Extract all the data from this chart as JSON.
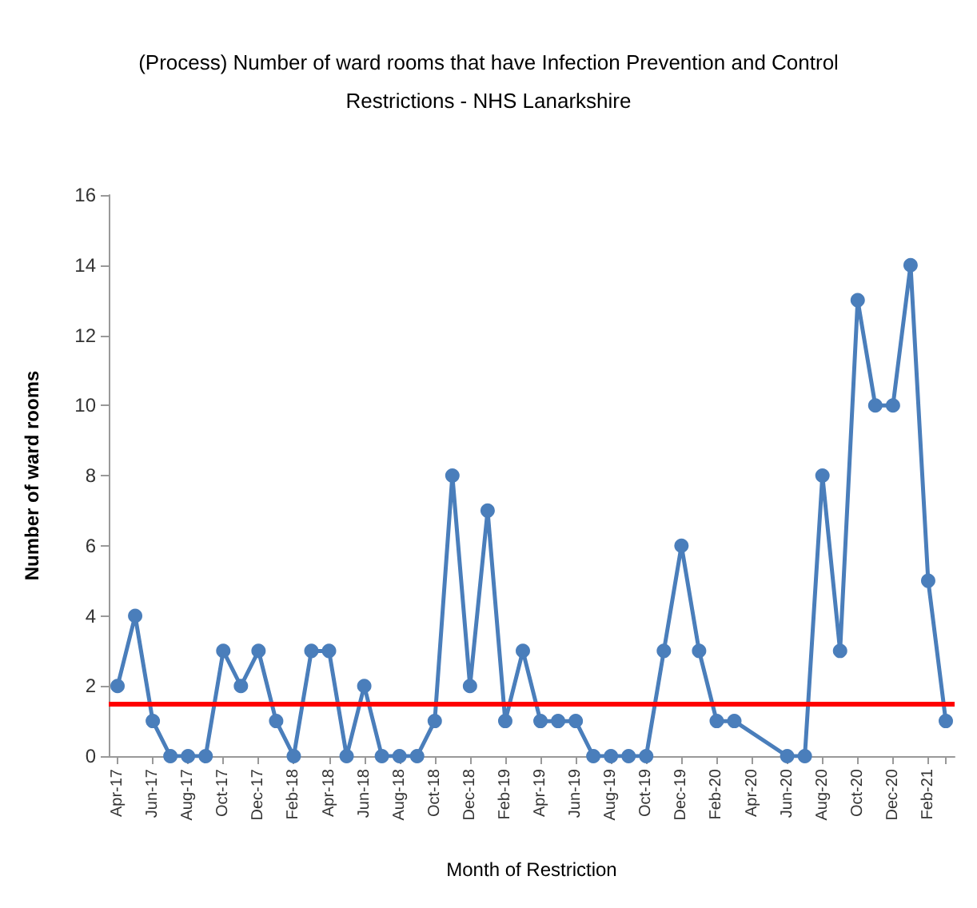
{
  "chart_data": {
    "type": "line",
    "title": "(Process) Number of ward rooms that have Infection Prevention and Control\nRestrictions - NHS Lanarkshire",
    "xlabel": "Month of Restriction",
    "ylabel": "Number of ward rooms",
    "categories": [
      "Apr-17",
      null,
      "Jun-17",
      null,
      "Aug-17",
      null,
      "Oct-17",
      null,
      "Dec-17",
      null,
      "Feb-18",
      null,
      "Apr-18",
      null,
      "Jun-18",
      null,
      "Aug-18",
      null,
      "Oct-18",
      null,
      "Dec-18",
      null,
      "Feb-19",
      null,
      "Apr-19",
      null,
      "Jun-19",
      null,
      "Aug-19",
      null,
      "Oct-19",
      null,
      "Dec-19",
      null,
      "Feb-20",
      null,
      "Apr-20",
      null,
      "Jun-20",
      null,
      "Aug-20",
      null,
      "Oct-20",
      null,
      "Dec-20",
      null,
      "Feb-21",
      null
    ],
    "series": [
      {
        "color": "#4a7ebb",
        "values": [
          2,
          4,
          1,
          0,
          0,
          0,
          3,
          2,
          3,
          1,
          0,
          3,
          3,
          0,
          2,
          0,
          0,
          0,
          1,
          8,
          2,
          7,
          1,
          3,
          1,
          1,
          1,
          0,
          0,
          0,
          0,
          3,
          6,
          3,
          1,
          1,
          null,
          null,
          0,
          0,
          8,
          3,
          13,
          10,
          10,
          14,
          5,
          1
        ]
      }
    ],
    "ylim": [
      0,
      16
    ],
    "yticks": [
      0,
      2,
      4,
      6,
      8,
      10,
      12,
      14,
      16
    ],
    "grid": false,
    "marker": "circle",
    "line_style": "solid",
    "ref_lines": [
      {
        "axis": "y",
        "value": 1.5,
        "color": "#ff0000"
      }
    ]
  }
}
